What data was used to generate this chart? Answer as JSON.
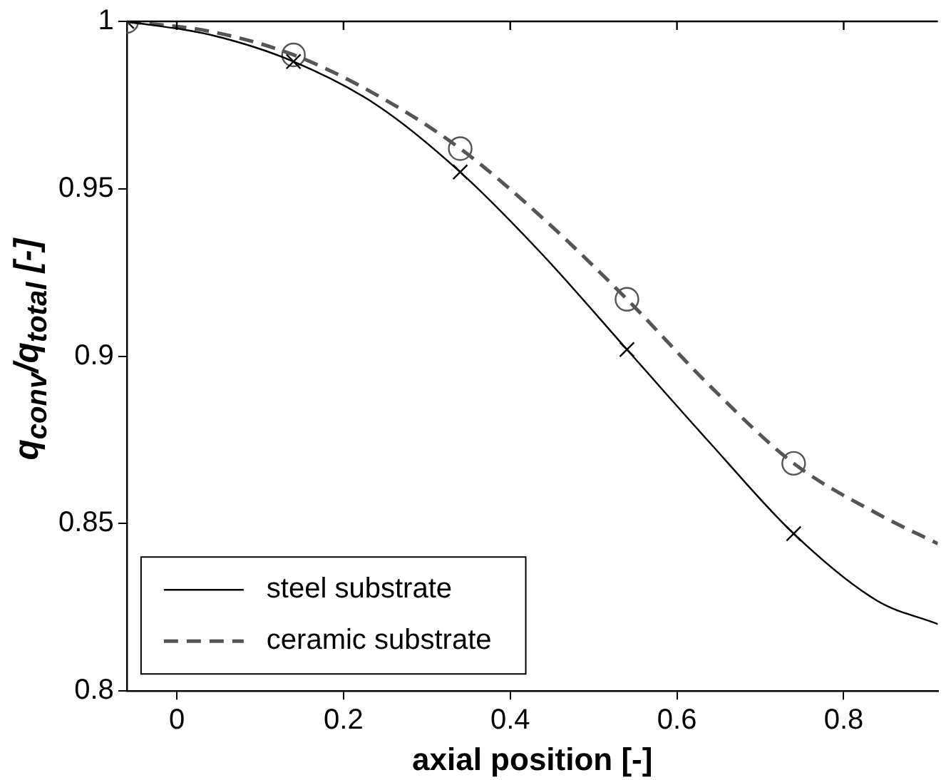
{
  "chart_data": {
    "type": "line",
    "xlabel": "axial position [-]",
    "ylabel": "q$_{conv}$/q$_{total}$ [-]",
    "xlim": [
      -0.06,
      0.913
    ],
    "xticks": [
      0,
      0.2,
      0.4,
      0.6,
      0.8
    ],
    "ylim": [
      0.8,
      1
    ],
    "yticks": [
      0.8,
      0.85,
      0.9,
      0.95,
      1
    ],
    "grid": false,
    "legend": "bottom left",
    "series": [
      {
        "name": "steel substrate",
        "color": "#000000",
        "line_style": "solid",
        "marker": "none",
        "x": [
          -0.06,
          0.04,
          0.14,
          0.24,
          0.34,
          0.44,
          0.54,
          0.64,
          0.74,
          0.84,
          0.913
        ],
        "values": [
          1,
          0.996,
          0.988,
          0.975,
          0.955,
          0.93,
          0.902,
          0.874,
          0.847,
          0.827,
          0.82
        ]
      },
      {
        "name": "ceramic substrate",
        "color": "#555555",
        "line_style": "dashed",
        "marker": "none",
        "x": [
          -0.06,
          0.04,
          0.14,
          0.24,
          0.34,
          0.44,
          0.54,
          0.64,
          0.74,
          0.84,
          0.913
        ],
        "values": [
          1,
          0.997,
          0.99,
          0.978,
          0.962,
          0.941,
          0.917,
          0.891,
          0.868,
          0.853,
          0.844
        ]
      },
      {
        "type": "scatter",
        "color": "#000000",
        "marker": "cross",
        "x": [
          -0.06,
          0.14,
          0.34,
          0.54,
          0.74
        ],
        "values": [
          1,
          0.988,
          0.955,
          0.902,
          0.847
        ]
      },
      {
        "type": "scatter",
        "color": "#555555",
        "marker": "circle",
        "x": [
          -0.06,
          0.14,
          0.34,
          0.54,
          0.74
        ],
        "values": [
          1,
          0.99,
          0.962,
          0.917,
          0.868
        ]
      }
    ]
  }
}
